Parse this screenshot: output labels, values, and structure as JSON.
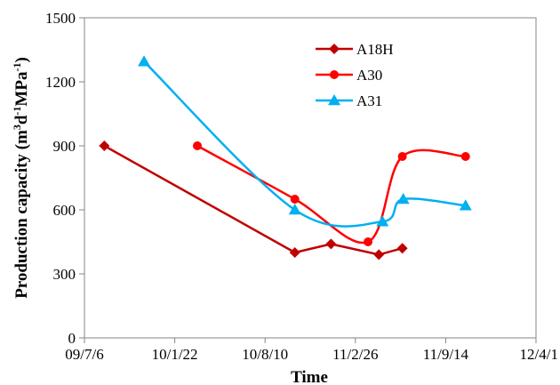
{
  "chart_data": {
    "type": "line",
    "title": "",
    "xlabel": "Time",
    "ylabel": "Production capacity (m³d⁻¹MPa⁻¹)",
    "ylabel_parts": {
      "prefix": "Production capacity (m",
      "sup1": "3",
      "mid1": "d",
      "sup2": "-1",
      "mid2": "MPa",
      "sup3": "-1",
      "suffix": ")"
    },
    "x_ticks": [
      "09/7/6",
      "10/1/22",
      "10/8/10",
      "11/2/26",
      "11/9/14",
      "12/4/1"
    ],
    "xlim": [
      0,
      5
    ],
    "ylim": [
      0,
      1500
    ],
    "y_ticks": [
      0,
      300,
      600,
      900,
      1200,
      1500
    ],
    "y_tick_labels": [
      "0",
      "300",
      "600",
      "900",
      "1200",
      "1500"
    ],
    "grid": false,
    "legend_position": "top-center",
    "series": [
      {
        "name": "A18H",
        "color": "#C00000",
        "marker": "diamond",
        "smooth": false,
        "points": [
          [
            0.22,
            900
          ],
          [
            2.33,
            400
          ],
          [
            2.73,
            440
          ],
          [
            3.26,
            390
          ],
          [
            3.52,
            420
          ]
        ]
      },
      {
        "name": "A30",
        "color": "#FF0000",
        "marker": "circle",
        "smooth": true,
        "points": [
          [
            1.25,
            900
          ],
          [
            2.33,
            650
          ],
          [
            3.14,
            450
          ],
          [
            3.52,
            850
          ],
          [
            4.22,
            850
          ]
        ]
      },
      {
        "name": "A31",
        "color": "#00B0F0",
        "marker": "triangle",
        "smooth": true,
        "points": [
          [
            0.66,
            1295
          ],
          [
            2.33,
            600
          ],
          [
            3.3,
            545
          ],
          [
            3.53,
            650
          ],
          [
            4.22,
            620
          ]
        ]
      }
    ]
  }
}
